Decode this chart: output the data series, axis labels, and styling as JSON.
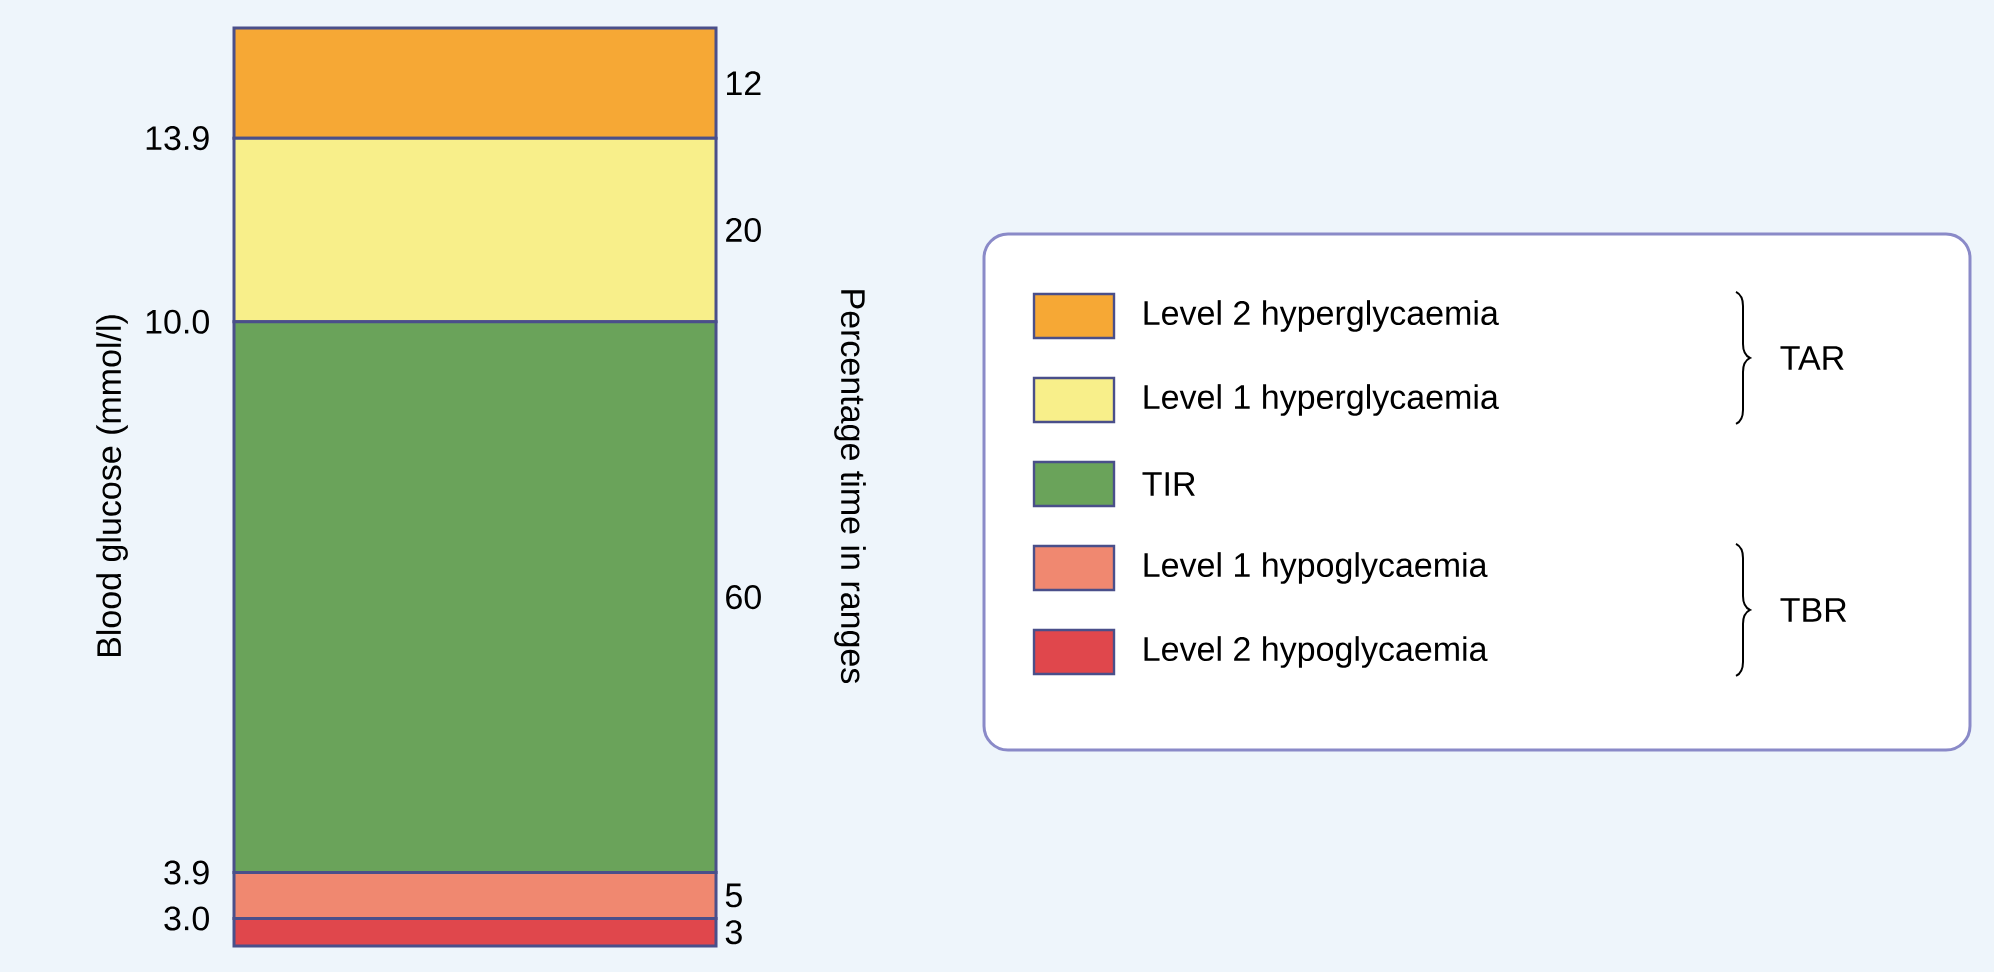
{
  "chart_data": {
    "type": "bar",
    "stacked": true,
    "categories": [
      null
    ],
    "ylabel": "Blood glucose (mmol/l)",
    "y2label": "Percentage time in ranges",
    "series": [
      {
        "name": "Level 2 hypoglycaemia",
        "color": "#e0474c",
        "values": [
          3
        ]
      },
      {
        "name": "Level 1 hypoglycaemia",
        "color": "#f08870",
        "values": [
          5
        ]
      },
      {
        "name": "TIR",
        "color": "#6aa35a",
        "values": [
          60
        ]
      },
      {
        "name": "Level 1 hyperglycaemia",
        "color": "#f8ef8a",
        "values": [
          20
        ]
      },
      {
        "name": "Level 2 hyperglycaemia",
        "color": "#f6a835",
        "values": [
          12
        ]
      }
    ],
    "data_labels": true,
    "legend": "right",
    "annotations": [
      "TAR",
      "TBR",
      "3.0",
      "3.9",
      "10.0",
      "13.9"
    ]
  }
}
